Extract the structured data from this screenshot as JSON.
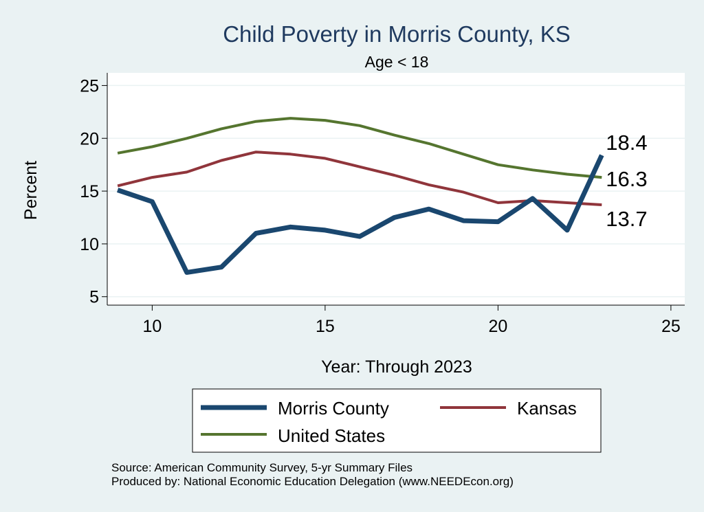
{
  "chart_data": {
    "type": "line",
    "title": "Child Poverty in Morris County, KS",
    "subtitle": "Age < 18",
    "xlabel": "Year: Through 2023",
    "ylabel": "Percent",
    "xlim": [
      8.7,
      25.4
    ],
    "ylim": [
      4.2,
      26.2
    ],
    "xticks": [
      10,
      15,
      20,
      25
    ],
    "yticks": [
      5,
      10,
      15,
      20,
      25
    ],
    "grid": true,
    "legend_position": "bottom",
    "x": [
      9,
      10,
      11,
      12,
      13,
      14,
      15,
      16,
      17,
      18,
      19,
      20,
      21,
      22,
      23
    ],
    "series": [
      {
        "name": "Morris County",
        "color": "#1a476f",
        "width": 7,
        "values": [
          15.1,
          14.0,
          7.3,
          7.8,
          11.0,
          11.6,
          11.3,
          10.7,
          12.5,
          13.3,
          12.2,
          12.1,
          14.3,
          11.3,
          18.4
        ],
        "end_label": "18.4"
      },
      {
        "name": "Kansas",
        "color": "#90353b",
        "width": 4,
        "values": [
          15.5,
          16.3,
          16.8,
          17.9,
          18.7,
          18.5,
          18.1,
          17.3,
          16.5,
          15.6,
          14.9,
          13.9,
          14.1,
          13.9,
          13.7
        ],
        "end_label": "13.7"
      },
      {
        "name": "United States",
        "color": "#55752f",
        "width": 4,
        "values": [
          18.6,
          19.2,
          20.0,
          20.9,
          21.6,
          21.9,
          21.7,
          21.2,
          20.3,
          19.5,
          18.5,
          17.5,
          17.0,
          16.6,
          16.3
        ],
        "end_label": "16.3"
      }
    ]
  },
  "source_lines": [
    "Source: American Community Survey, 5-yr Summary Files",
    "Produced by: National Economic Education Delegation (www.NEEDEcon.org)"
  ]
}
